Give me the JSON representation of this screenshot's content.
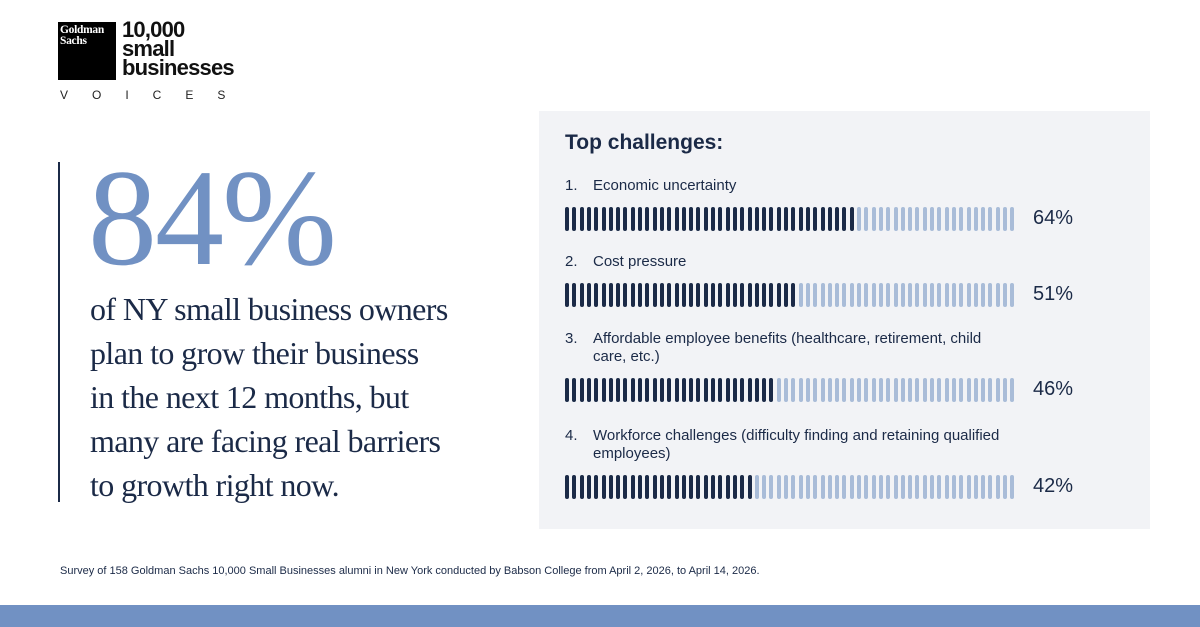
{
  "logo": {
    "box_text": "Goldman\nSachs",
    "wordmark": [
      "10,000",
      "small",
      "businesses"
    ],
    "subtitle": "VOICES"
  },
  "headline": {
    "stat": "84%",
    "lines": [
      "of NY small business owners",
      "plan to grow their business",
      "in the next 12 months, but",
      "many are facing real barriers",
      "to growth right now."
    ]
  },
  "chart_data": {
    "type": "bar",
    "title": "Top challenges:",
    "categories": [
      "Economic uncertainty",
      "Cost pressure",
      "Affordable employee benefits (healthcare, retirement, child care, etc.)",
      "Workforce challenges (difficulty finding and retaining qualified employees)"
    ],
    "numbers": [
      "1.",
      "2.",
      "3.",
      "4."
    ],
    "values": [
      64,
      51,
      46,
      42
    ],
    "value_labels": [
      "64%",
      "51%",
      "46%",
      "42%"
    ],
    "ylim": [
      0,
      100
    ],
    "segments": 62,
    "colors": {
      "filled": "#1b2a47",
      "unfilled": "#a9bcd8"
    }
  },
  "footnote": "Survey of 158 Goldman Sachs 10,000 Small Businesses alumni in New York conducted by Babson College from April 2, 2026, to April 14, 2026.",
  "colors": {
    "accent": "#7191c3",
    "navy": "#1b2a47",
    "panel": "#f2f3f6"
  }
}
